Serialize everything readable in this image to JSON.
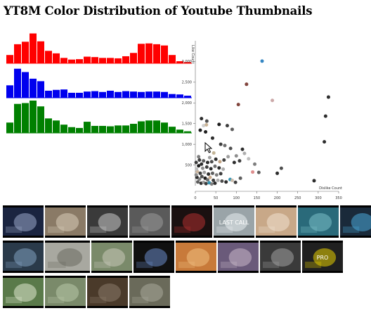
{
  "page": {
    "title": "YT8M Color Distribution of Youtube Thumbnails"
  },
  "colors": {
    "red": "#ff0000",
    "blue": "#0000ee",
    "green": "#008000",
    "accent_point": "#2a7fc0"
  },
  "chart_data": [
    {
      "type": "bar",
      "series": [
        {
          "color": "red",
          "values": [
            20,
            46,
            52,
            72,
            53,
            30,
            24,
            13,
            9,
            10,
            16,
            15,
            13,
            13,
            12,
            17,
            25,
            47,
            48,
            46,
            43,
            20,
            5,
            3
          ]
        },
        {
          "color": "blue",
          "values": [
            30,
            70,
            62,
            46,
            40,
            17,
            19,
            20,
            12,
            12,
            15,
            16,
            14,
            17,
            14,
            16,
            15,
            14,
            15,
            15,
            14,
            9,
            8,
            5
          ]
        },
        {
          "color": "green",
          "values": [
            25,
            70,
            72,
            78,
            64,
            35,
            30,
            20,
            14,
            12,
            27,
            17,
            17,
            16,
            18,
            18,
            22,
            28,
            30,
            30,
            25,
            15,
            8,
            4
          ]
        }
      ]
    },
    {
      "type": "scatter",
      "xlabel": "Dislike Count",
      "ylabel": "Like Count",
      "xlim": [
        0,
        350
      ],
      "ylim": [
        0,
        3500
      ],
      "xticks": [
        0,
        50,
        100,
        150,
        200,
        250,
        300,
        350
      ],
      "yticks": [
        500,
        1000,
        1500,
        2000,
        2500,
        3000
      ],
      "xtick_labels": [
        "0",
        "50",
        "100",
        "150",
        "200",
        "250",
        "300",
        "350"
      ],
      "ytick_labels": [
        "500",
        "1,000",
        "1,500",
        "2,000",
        "2,500",
        "3,000"
      ],
      "points": [
        {
          "x": 163,
          "y": 3010,
          "c": "#2a7fc0"
        },
        {
          "x": 125,
          "y": 2450,
          "c": "#7a3a32"
        },
        {
          "x": 188,
          "y": 2060,
          "c": "#c9a4a4"
        },
        {
          "x": 105,
          "y": 1960,
          "c": "#7a3a32"
        },
        {
          "x": 325,
          "y": 2140,
          "c": "#222"
        },
        {
          "x": 318,
          "y": 1680,
          "c": "#222"
        },
        {
          "x": 315,
          "y": 1060,
          "c": "#222"
        },
        {
          "x": 290,
          "y": 120,
          "c": "#222"
        },
        {
          "x": 210,
          "y": 420,
          "c": "#444"
        },
        {
          "x": 200,
          "y": 300,
          "c": "#222"
        },
        {
          "x": 15,
          "y": 1620,
          "c": "#222"
        },
        {
          "x": 28,
          "y": 1560,
          "c": "#444"
        },
        {
          "x": 12,
          "y": 1340,
          "c": "#111"
        },
        {
          "x": 25,
          "y": 1300,
          "c": "#111"
        },
        {
          "x": 20,
          "y": 1450,
          "c": "#ccc"
        },
        {
          "x": 27,
          "y": 1470,
          "c": "#c8b090"
        },
        {
          "x": 42,
          "y": 1150,
          "c": "#222"
        },
        {
          "x": 58,
          "y": 1480,
          "c": "#111"
        },
        {
          "x": 78,
          "y": 1450,
          "c": "#333"
        },
        {
          "x": 90,
          "y": 1360,
          "c": "#555"
        },
        {
          "x": 62,
          "y": 1000,
          "c": "#333"
        },
        {
          "x": 72,
          "y": 970,
          "c": "#666"
        },
        {
          "x": 86,
          "y": 900,
          "c": "#444"
        },
        {
          "x": 115,
          "y": 880,
          "c": "#222"
        },
        {
          "x": 120,
          "y": 780,
          "c": "#aaa"
        },
        {
          "x": 100,
          "y": 720,
          "c": "#888"
        },
        {
          "x": 108,
          "y": 600,
          "c": "#333"
        },
        {
          "x": 95,
          "y": 560,
          "c": "#222"
        },
        {
          "x": 130,
          "y": 650,
          "c": "#bbb"
        },
        {
          "x": 140,
          "y": 330,
          "c": "#d88"
        },
        {
          "x": 155,
          "y": 320,
          "c": "#555"
        },
        {
          "x": 145,
          "y": 520,
          "c": "#777"
        },
        {
          "x": 80,
          "y": 700,
          "c": "#999"
        },
        {
          "x": 70,
          "y": 620,
          "c": "#333"
        },
        {
          "x": 60,
          "y": 580,
          "c": "#c0a080"
        },
        {
          "x": 50,
          "y": 640,
          "c": "#222"
        },
        {
          "x": 40,
          "y": 580,
          "c": "#444"
        },
        {
          "x": 30,
          "y": 560,
          "c": "#222"
        },
        {
          "x": 20,
          "y": 600,
          "c": "#555"
        },
        {
          "x": 10,
          "y": 620,
          "c": "#333"
        },
        {
          "x": 8,
          "y": 480,
          "c": "#111"
        },
        {
          "x": 18,
          "y": 420,
          "c": "#888"
        },
        {
          "x": 28,
          "y": 450,
          "c": "#333"
        },
        {
          "x": 38,
          "y": 410,
          "c": "#222"
        },
        {
          "x": 48,
          "y": 470,
          "c": "#666"
        },
        {
          "x": 58,
          "y": 430,
          "c": "#222"
        },
        {
          "x": 68,
          "y": 400,
          "c": "#aaa"
        },
        {
          "x": 5,
          "y": 340,
          "c": "#c9b29a"
        },
        {
          "x": 12,
          "y": 300,
          "c": "#333"
        },
        {
          "x": 22,
          "y": 320,
          "c": "#999"
        },
        {
          "x": 32,
          "y": 280,
          "c": "#222"
        },
        {
          "x": 42,
          "y": 300,
          "c": "#555"
        },
        {
          "x": 52,
          "y": 260,
          "c": "#777"
        },
        {
          "x": 62,
          "y": 290,
          "c": "#333"
        },
        {
          "x": 4,
          "y": 200,
          "c": "#222"
        },
        {
          "x": 10,
          "y": 160,
          "c": "#777"
        },
        {
          "x": 16,
          "y": 220,
          "c": "#444"
        },
        {
          "x": 24,
          "y": 180,
          "c": "#111"
        },
        {
          "x": 30,
          "y": 140,
          "c": "#666"
        },
        {
          "x": 36,
          "y": 200,
          "c": "#c8a888"
        },
        {
          "x": 44,
          "y": 130,
          "c": "#333"
        },
        {
          "x": 6,
          "y": 90,
          "c": "#555"
        },
        {
          "x": 14,
          "y": 60,
          "c": "#222"
        },
        {
          "x": 20,
          "y": 80,
          "c": "#999"
        },
        {
          "x": 26,
          "y": 50,
          "c": "#333"
        },
        {
          "x": 34,
          "y": 70,
          "c": "#2a8fb0"
        },
        {
          "x": 40,
          "y": 40,
          "c": "#777"
        },
        {
          "x": 48,
          "y": 60,
          "c": "#222"
        },
        {
          "x": 55,
          "y": 130,
          "c": "#aaa"
        },
        {
          "x": 65,
          "y": 110,
          "c": "#444"
        },
        {
          "x": 75,
          "y": 90,
          "c": "#222"
        },
        {
          "x": 85,
          "y": 150,
          "c": "#2a8fb0"
        },
        {
          "x": 90,
          "y": 130,
          "c": "#c8b8a8"
        },
        {
          "x": 98,
          "y": 80,
          "c": "#333"
        },
        {
          "x": 110,
          "y": 180,
          "c": "#555"
        },
        {
          "x": 2,
          "y": 260,
          "c": "#888"
        },
        {
          "x": 3,
          "y": 400,
          "c": "#bbb"
        },
        {
          "x": 15,
          "y": 520,
          "c": "#222"
        },
        {
          "x": 35,
          "y": 680,
          "c": "#999"
        },
        {
          "x": 45,
          "y": 790,
          "c": "#c0b090"
        },
        {
          "x": 8,
          "y": 700,
          "c": "#777"
        },
        {
          "x": 2,
          "y": 560,
          "c": "#333"
        }
      ]
    }
  ],
  "thumbnails": [
    [
      {
        "name": "singer-concert",
        "bg": "#1a2440",
        "fg": "#9aa8c8",
        "w": 58
      },
      {
        "name": "man-kitchen",
        "bg": "#8a7a66",
        "fg": "#d8ccb8",
        "w": 58
      },
      {
        "name": "car-interior",
        "bg": "#3a3a3a",
        "fg": "#c8c8c8",
        "w": 58
      },
      {
        "name": "road-drive",
        "bg": "#5a5a5a",
        "fg": "#9a9a9a",
        "w": 58
      },
      {
        "name": "red-round",
        "bg": "#1a1010",
        "fg": "#b03030",
        "w": 58
      },
      {
        "name": "last-call",
        "bg": "#9aa4a8",
        "fg": "#e8ecee",
        "w": 58,
        "label": "LAST CALL"
      },
      {
        "name": "cat-blanket",
        "bg": "#c8a888",
        "fg": "#f0e0d0",
        "w": 58
      },
      {
        "name": "underwater",
        "bg": "#2a6a7a",
        "fg": "#7ac0c8",
        "w": 58
      },
      {
        "name": "game-screen",
        "bg": "#1a2a3a",
        "fg": "#4aa8d8",
        "w": 58
      }
    ],
    [
      {
        "name": "tv-screen",
        "bg": "#2a3a4a",
        "fg": "#80a0c0",
        "w": 58
      },
      {
        "name": "bike-ride",
        "bg": "#a8a8a0",
        "fg": "#6a6a60",
        "w": 64
      },
      {
        "name": "people-field",
        "bg": "#7a8a6a",
        "fg": "#c8c8b8",
        "w": 58
      },
      {
        "name": "tv-dark",
        "bg": "#101010",
        "fg": "#6a8ac8",
        "w": 58
      },
      {
        "name": "food-plate",
        "bg": "#c87a3a",
        "fg": "#f0c080",
        "w": 58
      },
      {
        "name": "crowd-event",
        "bg": "#6a5a7a",
        "fg": "#c8b8c8",
        "w": 58
      },
      {
        "name": "street-scene",
        "bg": "#3a3a3a",
        "fg": "#a0a0a0",
        "w": 58
      },
      {
        "name": "pro-logo",
        "bg": "#202020",
        "fg": "#e8d000",
        "w": 58,
        "label": "PRO"
      }
    ],
    [
      {
        "name": "recipe-bowls",
        "bg": "#5a7a4a",
        "fg": "#e0e8d0",
        "w": 58
      },
      {
        "name": "tree-park",
        "bg": "#7a8a6a",
        "fg": "#b8c8a8",
        "w": 58
      },
      {
        "name": "dark-room",
        "bg": "#4a3a2a",
        "fg": "#8a7a6a",
        "w": 58
      },
      {
        "name": "stadium",
        "bg": "#6a6a5a",
        "fg": "#a8a89a",
        "w": 58
      }
    ]
  ]
}
